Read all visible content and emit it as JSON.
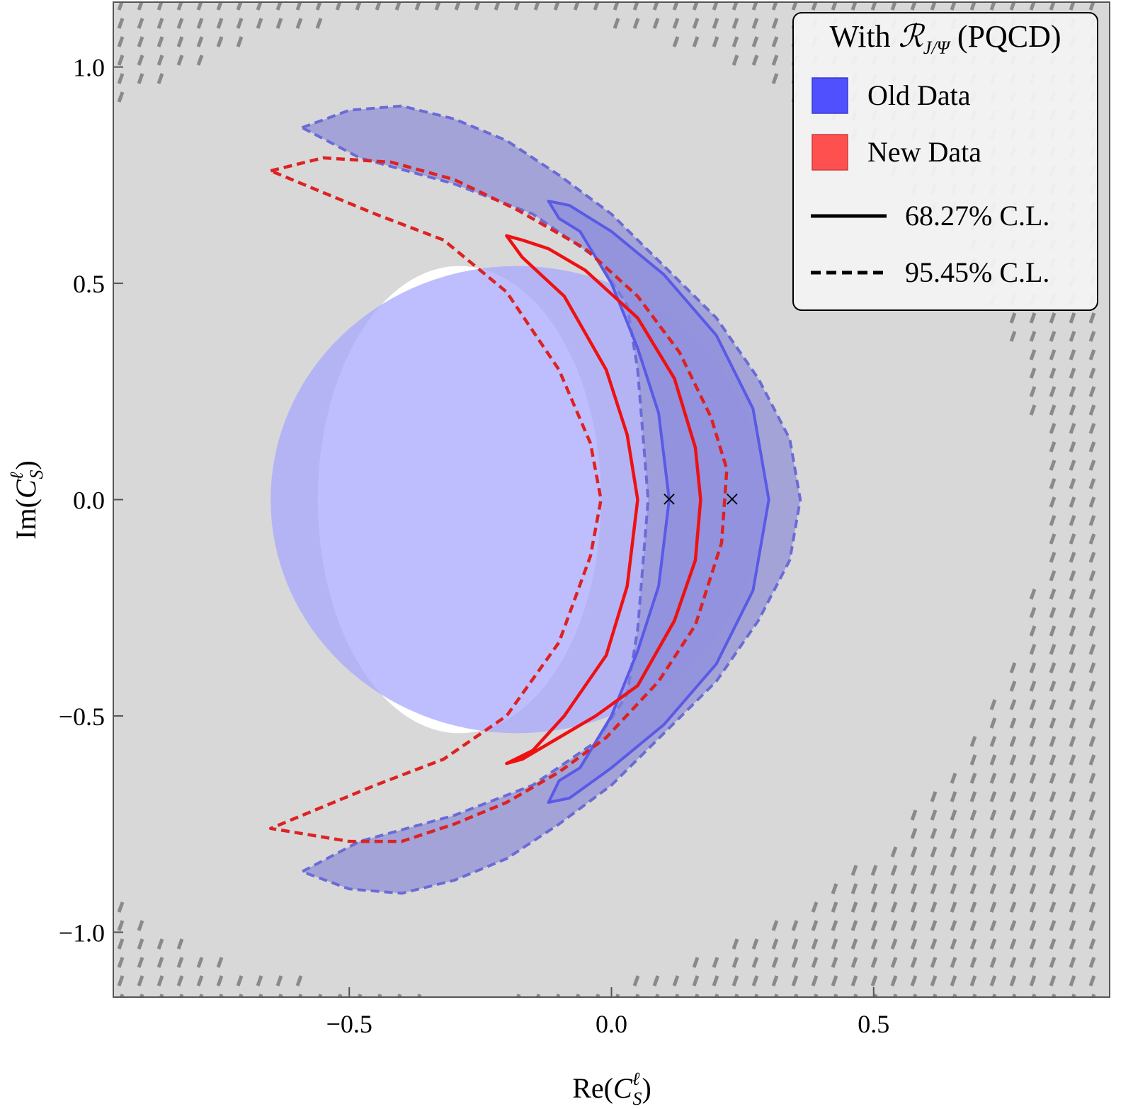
{
  "chart_data": {
    "type": "contour",
    "title": "",
    "xlabel": "Re(C_S^ℓ)",
    "ylabel": "Im(C_S^ℓ)",
    "xlabel_parts": {
      "pre": "Re(",
      "base": "C",
      "sub": "S",
      "sup": "ℓ",
      "post": ")"
    },
    "ylabel_parts": {
      "pre": "Im(",
      "base": "C",
      "sub": "S",
      "sup": "ℓ",
      "post": ")"
    },
    "xlim": [
      -0.95,
      0.95
    ],
    "ylim": [
      -1.15,
      1.15
    ],
    "xticks": [
      {
        "value": -0.5,
        "label": "−0.5"
      },
      {
        "value": 0.0,
        "label": "0.0"
      },
      {
        "value": 0.5,
        "label": "0.5"
      }
    ],
    "yticks": [
      {
        "value": 1.0,
        "label": "1.0"
      },
      {
        "value": 0.5,
        "label": "0.5"
      },
      {
        "value": 0.0,
        "label": "0.0"
      },
      {
        "value": -0.5,
        "label": "−0.5"
      },
      {
        "value": -1.0,
        "label": "−1.0"
      }
    ],
    "legend": {
      "position": "top-right",
      "title_parts": {
        "pre": "With ",
        "base": "ℛ",
        "sub": "J/Ψ",
        "post": " (PQCD)"
      },
      "entries": [
        {
          "label": "Old Data",
          "kind": "swatch",
          "color": "#5050ff"
        },
        {
          "label": "New Data",
          "kind": "swatch",
          "color": "#ff5050"
        },
        {
          "label": "68.27% C.L.",
          "kind": "line",
          "style": "solid"
        },
        {
          "label": "95.45% C.L.",
          "kind": "line",
          "style": "dashed"
        }
      ]
    },
    "regions": {
      "allowed_band": {
        "color": "#d8d8d8",
        "description": "gray background band"
      },
      "excluded_core": {
        "center": [
          -0.29,
          0.0
        ],
        "rx": 0.27,
        "ry": 0.54,
        "color": "#ffffff"
      },
      "old_data_constraint_ellipse": {
        "center": [
          -0.18,
          0.0
        ],
        "rx": 0.47,
        "ry": 0.54,
        "color": "#a8a8ff"
      }
    },
    "series": [
      {
        "name": "Old Data 95.45% C.L.",
        "dataset": "Old Data",
        "level": "95.45%",
        "line_color": "#6b6bd6",
        "fill": "#9a9ad8",
        "style": "dashed",
        "points": [
          [
            -0.59,
            0.86
          ],
          [
            -0.5,
            0.9
          ],
          [
            -0.4,
            0.91
          ],
          [
            -0.3,
            0.88
          ],
          [
            -0.2,
            0.83
          ],
          [
            -0.1,
            0.75
          ],
          [
            0.0,
            0.66
          ],
          [
            0.1,
            0.54
          ],
          [
            0.2,
            0.42
          ],
          [
            0.28,
            0.28
          ],
          [
            0.34,
            0.14
          ],
          [
            0.36,
            0.0
          ],
          [
            0.34,
            -0.14
          ],
          [
            0.28,
            -0.28
          ],
          [
            0.2,
            -0.42
          ],
          [
            0.1,
            -0.54
          ],
          [
            0.0,
            -0.66
          ],
          [
            -0.1,
            -0.75
          ],
          [
            -0.2,
            -0.83
          ],
          [
            -0.3,
            -0.88
          ],
          [
            -0.4,
            -0.91
          ],
          [
            -0.5,
            -0.9
          ],
          [
            -0.59,
            -0.86
          ],
          [
            -0.48,
            -0.79
          ],
          [
            -0.3,
            -0.73
          ],
          [
            -0.15,
            -0.66
          ],
          [
            -0.03,
            -0.56
          ],
          [
            0.03,
            -0.45
          ],
          [
            0.05,
            -0.3
          ],
          [
            0.06,
            -0.15
          ],
          [
            0.07,
            0.0
          ],
          [
            0.06,
            0.15
          ],
          [
            0.05,
            0.3
          ],
          [
            0.03,
            0.45
          ],
          [
            -0.03,
            0.56
          ],
          [
            -0.15,
            0.66
          ],
          [
            -0.3,
            0.73
          ],
          [
            -0.48,
            0.79
          ]
        ]
      },
      {
        "name": "Old Data 68.27% C.L.",
        "dataset": "Old Data",
        "level": "68.27%",
        "line_color": "#5a5ae6",
        "fill": "#8888e0",
        "style": "solid",
        "points": [
          [
            -0.12,
            0.69
          ],
          [
            -0.08,
            0.68
          ],
          [
            0.0,
            0.62
          ],
          [
            0.1,
            0.52
          ],
          [
            0.2,
            0.38
          ],
          [
            0.27,
            0.21
          ],
          [
            0.3,
            0.0
          ],
          [
            0.27,
            -0.21
          ],
          [
            0.2,
            -0.38
          ],
          [
            0.1,
            -0.52
          ],
          [
            0.0,
            -0.62
          ],
          [
            -0.08,
            -0.69
          ],
          [
            -0.12,
            -0.7
          ],
          [
            -0.1,
            -0.65
          ],
          [
            -0.06,
            -0.62
          ],
          [
            0.0,
            -0.5
          ],
          [
            0.05,
            -0.35
          ],
          [
            0.09,
            -0.2
          ],
          [
            0.11,
            0.0
          ],
          [
            0.09,
            0.2
          ],
          [
            0.05,
            0.35
          ],
          [
            0.0,
            0.5
          ],
          [
            -0.06,
            0.62
          ],
          [
            -0.1,
            0.65
          ]
        ]
      },
      {
        "name": "New Data 95.45% C.L.",
        "dataset": "New Data",
        "level": "95.45%",
        "line_color": "#dd2222",
        "style": "dashed",
        "points": [
          [
            -0.65,
            0.76
          ],
          [
            -0.55,
            0.79
          ],
          [
            -0.42,
            0.78
          ],
          [
            -0.3,
            0.74
          ],
          [
            -0.18,
            0.67
          ],
          [
            -0.05,
            0.58
          ],
          [
            0.05,
            0.47
          ],
          [
            0.13,
            0.34
          ],
          [
            0.19,
            0.19
          ],
          [
            0.22,
            0.07
          ],
          [
            0.21,
            -0.1
          ],
          [
            0.16,
            -0.29
          ],
          [
            0.09,
            -0.42
          ],
          [
            -0.01,
            -0.55
          ],
          [
            -0.1,
            -0.63
          ],
          [
            -0.2,
            -0.7
          ],
          [
            -0.3,
            -0.75
          ],
          [
            -0.4,
            -0.79
          ],
          [
            -0.5,
            -0.79
          ],
          [
            -0.65,
            -0.76
          ],
          [
            -0.55,
            -0.71
          ],
          [
            -0.45,
            -0.66
          ],
          [
            -0.32,
            -0.6
          ],
          [
            -0.2,
            -0.5
          ],
          [
            -0.1,
            -0.33
          ],
          [
            -0.04,
            -0.13
          ],
          [
            -0.02,
            0.0
          ],
          [
            -0.04,
            0.13
          ],
          [
            -0.1,
            0.3
          ],
          [
            -0.2,
            0.48
          ],
          [
            -0.32,
            0.6
          ],
          [
            -0.45,
            0.66
          ],
          [
            -0.55,
            0.71
          ]
        ]
      },
      {
        "name": "New Data 68.27% C.L.",
        "dataset": "New Data",
        "level": "68.27%",
        "line_color": "#ee1111",
        "style": "solid",
        "points": [
          [
            -0.2,
            0.61
          ],
          [
            -0.17,
            0.6
          ],
          [
            -0.12,
            0.58
          ],
          [
            -0.05,
            0.53
          ],
          [
            0.05,
            0.42
          ],
          [
            0.12,
            0.28
          ],
          [
            0.16,
            0.12
          ],
          [
            0.17,
            0.0
          ],
          [
            0.16,
            -0.14
          ],
          [
            0.12,
            -0.28
          ],
          [
            0.05,
            -0.43
          ],
          [
            -0.03,
            -0.5
          ],
          [
            -0.1,
            -0.55
          ],
          [
            -0.17,
            -0.6
          ],
          [
            -0.2,
            -0.61
          ],
          [
            -0.15,
            -0.58
          ],
          [
            -0.09,
            -0.5
          ],
          [
            -0.01,
            -0.36
          ],
          [
            0.03,
            -0.2
          ],
          [
            0.05,
            0.0
          ],
          [
            0.03,
            0.15
          ],
          [
            -0.01,
            0.3
          ],
          [
            -0.09,
            0.47
          ],
          [
            -0.17,
            0.56
          ]
        ]
      }
    ],
    "best_fit_points": [
      {
        "name": "New Data best fit",
        "x": 0.11,
        "y": 0.0,
        "color": "#9a3030",
        "marker": "×"
      },
      {
        "name": "Old Data best fit",
        "x": 0.23,
        "y": 0.0,
        "color": "#3030a0",
        "marker": "×"
      }
    ]
  }
}
